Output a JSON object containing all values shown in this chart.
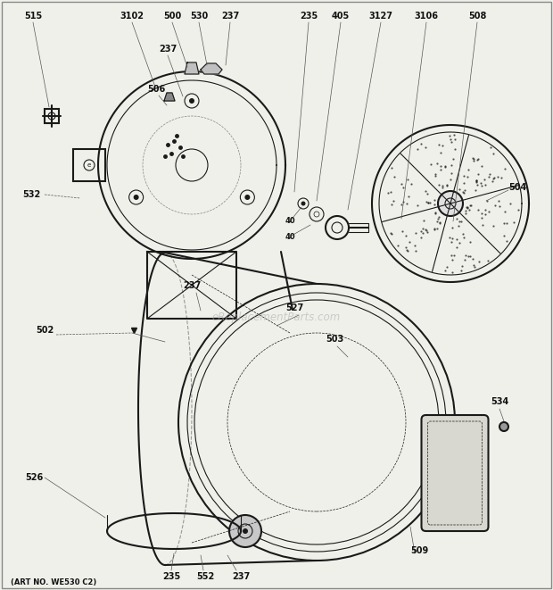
{
  "bg_color": "#f0f0eb",
  "watermark": "eReplacementParts.com",
  "art_no": "(ART NO. WE530 C2)",
  "line_color": "#1a1a1a",
  "label_color": "#111111"
}
